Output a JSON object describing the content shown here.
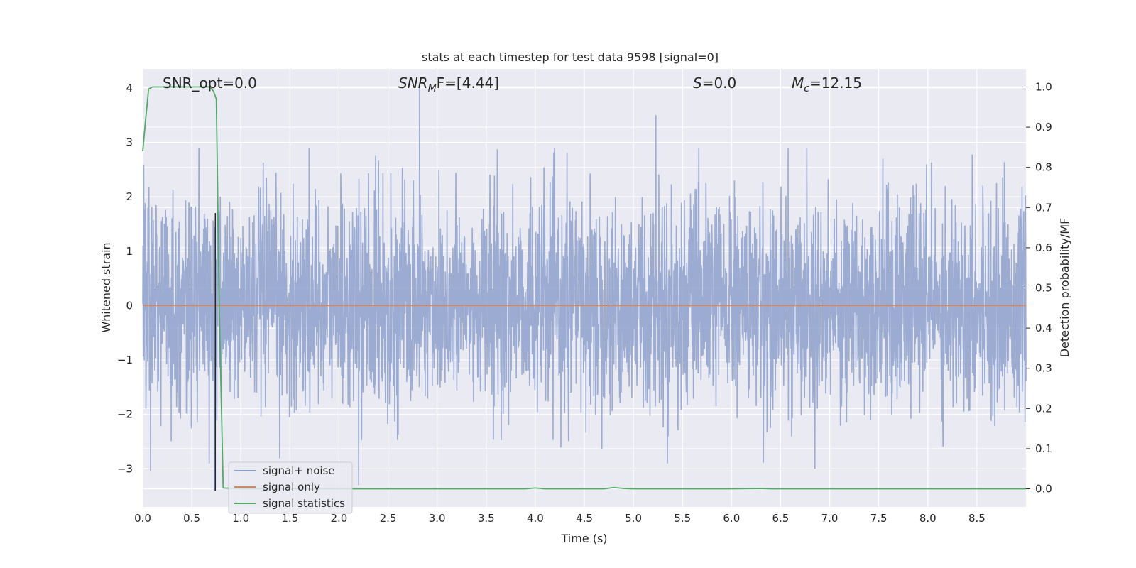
{
  "chart_data": {
    "type": "line",
    "title": "stats at each timestep for test data 9598 [signal=0]",
    "xlabel": "Time (s)",
    "ylabel": "Whitened strain",
    "y2label": "Detection probability/MF",
    "xlim": [
      0.0,
      9.0
    ],
    "ylim": [
      -3.7,
      4.35
    ],
    "y2lim": [
      -0.045,
      1.045
    ],
    "xticks": [
      0.0,
      0.5,
      1.0,
      1.5,
      2.0,
      2.5,
      3.0,
      3.5,
      4.0,
      4.5,
      5.0,
      5.5,
      6.0,
      6.5,
      7.0,
      7.5,
      8.0,
      8.5
    ],
    "xtick_labels": [
      "0.0",
      "0.5",
      "1.0",
      "1.5",
      "2.0",
      "2.5",
      "3.0",
      "3.5",
      "4.0",
      "4.5",
      "5.0",
      "5.5",
      "6.0",
      "6.5",
      "7.0",
      "7.5",
      "8.0",
      "8.5"
    ],
    "yticks": [
      -3,
      -2,
      -1,
      0,
      1,
      2,
      3,
      4
    ],
    "ytick_labels": [
      "−3",
      "−2",
      "−1",
      "0",
      "1",
      "2",
      "3",
      "4"
    ],
    "y2ticks": [
      0.0,
      0.1,
      0.2,
      0.3,
      0.4,
      0.5,
      0.6,
      0.7,
      0.8,
      0.9,
      1.0
    ],
    "y2tick_labels": [
      "0.0",
      "0.1",
      "0.2",
      "0.3",
      "0.4",
      "0.5",
      "0.6",
      "0.7",
      "0.8",
      "0.9",
      "1.0"
    ],
    "grid": true,
    "legend_position": "lower-left",
    "series": [
      {
        "name": "signal+ noise",
        "axis": "left",
        "color": "#8da0cb",
        "kind": "noise",
        "description_values": "whitened noisy strain spanning roughly -3 to 4",
        "peaks": [
          [
            2.82,
            4.0
          ],
          [
            5.23,
            3.5
          ],
          [
            0.08,
            -3.05
          ],
          [
            2.2,
            -3.3
          ],
          [
            6.85,
            -3.0
          ],
          [
            0.73,
            -3.4
          ]
        ]
      },
      {
        "name": "signal only",
        "axis": "left",
        "color": "#dd8452",
        "x": [
          0.0,
          9.0
        ],
        "y": [
          0.0,
          0.0
        ]
      },
      {
        "name": "signal statistics",
        "axis": "right",
        "color": "#55a868",
        "x": [
          0.0,
          0.03,
          0.06,
          0.1,
          0.2,
          0.4,
          0.6,
          0.68,
          0.72,
          0.75,
          0.78,
          0.82,
          1.0,
          2.0,
          3.0,
          3.9,
          4.0,
          4.1,
          4.7,
          4.8,
          4.9,
          5.0,
          6.0,
          6.3,
          6.4,
          7.0,
          8.0,
          9.0
        ],
        "y": [
          0.84,
          0.92,
          0.995,
          1.0,
          1.0,
          1.0,
          1.0,
          1.0,
          0.99,
          0.97,
          0.45,
          0.002,
          0.0,
          0.0,
          0.0,
          0.0,
          0.002,
          0.0,
          0.0,
          0.003,
          0.001,
          0.0,
          0.0,
          0.001,
          0.0,
          0.0,
          0.0,
          0.0
        ]
      }
    ],
    "annotations": [
      {
        "text": "SNR_opt=0.0",
        "x": 0.2,
        "y": 4.0
      },
      {
        "text_main": "SNR",
        "text_sub": "M",
        "text_rest": "F=[4.44]",
        "x": 2.6,
        "y": 4.0
      },
      {
        "text_main": "S",
        "text_rest": "=0.0",
        "x": 5.6,
        "y": 4.0
      },
      {
        "text_main": "M",
        "text_sub": "c",
        "text_rest": "=12.15",
        "x": 6.6,
        "y": 4.0
      }
    ],
    "vertical_line": {
      "x": 0.74,
      "y_from": -3.4,
      "y_to": 1.7,
      "color": "#262626"
    }
  }
}
